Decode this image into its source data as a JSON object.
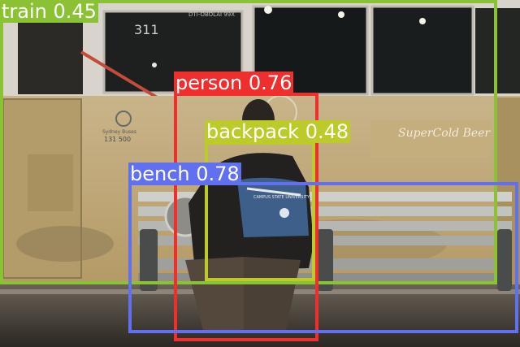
{
  "scene": {
    "train_sign_text": "DTI-OBOLAI 99X",
    "train_number": "311",
    "car_code": "131 500",
    "operator_caption": "Sydney Buses",
    "ad_text": "SuperCold Beer",
    "bench_sticker_text": "CAMPUS STATE UNIVERSITY"
  },
  "detections": [
    {
      "id": "train",
      "label": "train",
      "score": "0.45",
      "color": "#8ac234"
    },
    {
      "id": "person",
      "label": "person",
      "score": "0.76",
      "color": "#ef2e2e"
    },
    {
      "id": "backpack",
      "label": "backpack",
      "score": "0.48",
      "color": "#bcca2a"
    },
    {
      "id": "bench",
      "label": "bench",
      "score": "0.78",
      "color": "#6170f0"
    }
  ]
}
